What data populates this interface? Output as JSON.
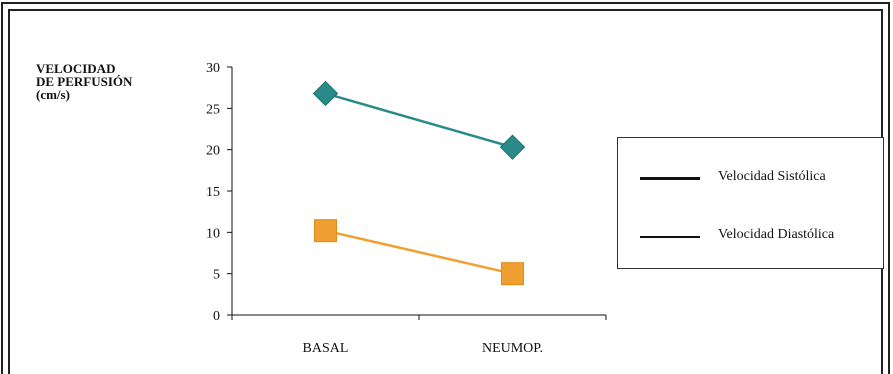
{
  "chart_data": {
    "type": "line",
    "ylabel": [
      "VELOCIDAD",
      "DE PERFUSIÓN",
      "(cm/s)"
    ],
    "categories": [
      "BASAL",
      "NEUMOP."
    ],
    "ylim": [
      0,
      30
    ],
    "yticks": [
      0,
      5,
      10,
      15,
      20,
      25,
      30
    ],
    "series": [
      {
        "name": "Velocidad Sistólica",
        "values": [
          26.8,
          20.3
        ],
        "color": "#2a8a8a",
        "marker": "diamond"
      },
      {
        "name": "Velocidad Diastólica",
        "values": [
          10.2,
          5.0
        ],
        "color": "#f0a030",
        "marker": "square"
      }
    ],
    "legend": {
      "position": "right",
      "items": [
        "Velocidad Sistólica",
        "Velocidad Diastólica"
      ]
    }
  }
}
